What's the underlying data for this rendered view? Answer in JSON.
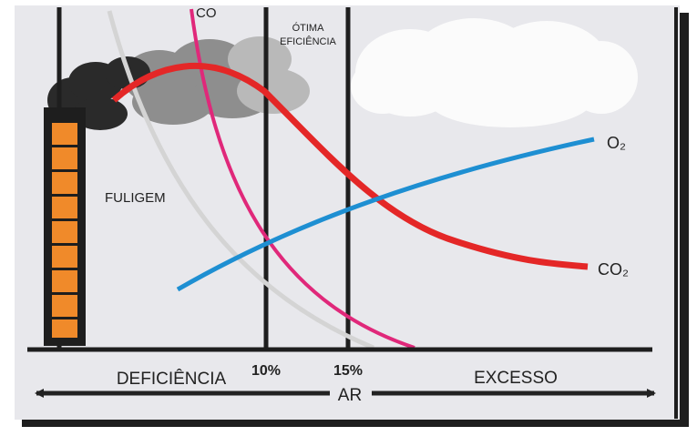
{
  "labels": {
    "co": "CO",
    "optimal": [
      "ÓTIMA",
      "EFICIÊNCIA"
    ],
    "soot": "FULIGEM",
    "o2": "O₂",
    "co2": "CO₂",
    "ten": "10%",
    "fifteen": "15%",
    "deficiency": "DEFICIÊNCIA",
    "excess": "EXCESSO",
    "air": "AR"
  }
}
